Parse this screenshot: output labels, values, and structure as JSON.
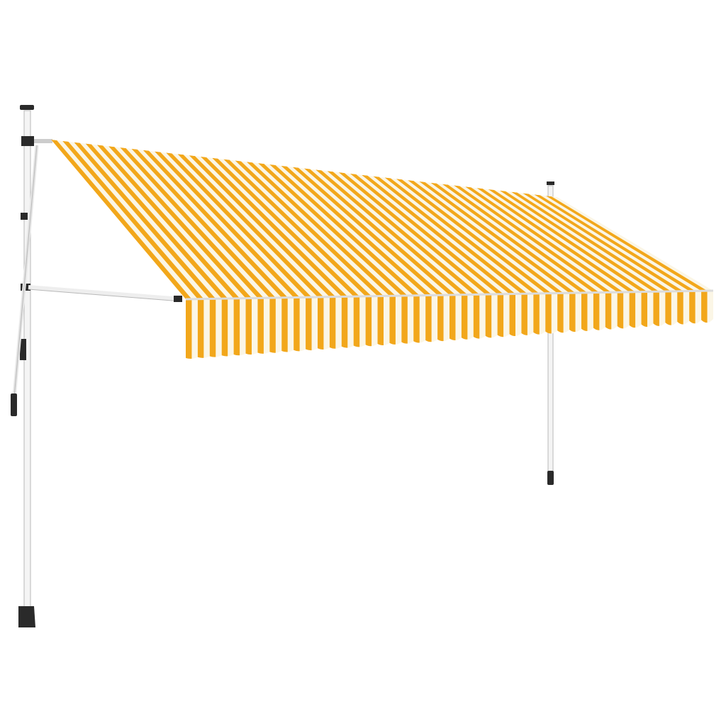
{
  "product": {
    "colors": {
      "stripe_yellow": "#f2a71b",
      "stripe_white": "#fbf6e6",
      "pole": "#f4f4f4",
      "pole_edge": "#b8b8b8",
      "fitting": "#2a2a2a",
      "background": "#ffffff"
    },
    "stripe_count": 44
  }
}
